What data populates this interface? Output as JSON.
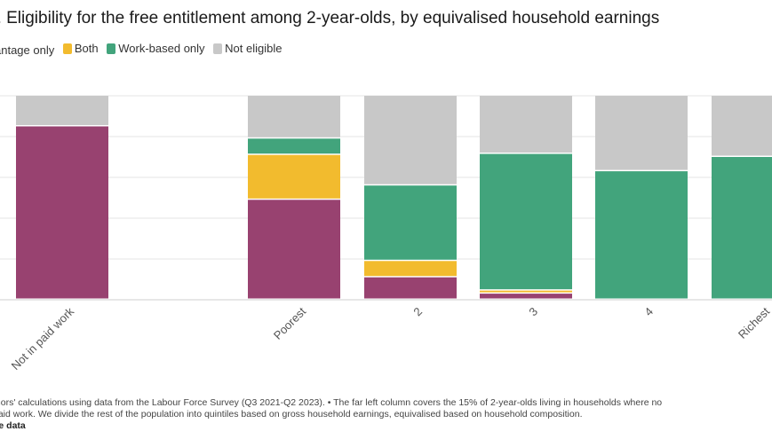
{
  "title": "1. Eligibility for the free entitlement among 2-year-olds, by equivalised household earnings",
  "legend": [
    {
      "label": "antage only",
      "color": "#984270"
    },
    {
      "label": "Both",
      "color": "#f2bb2e"
    },
    {
      "label": "Work-based only",
      "color": "#42a47c"
    },
    {
      "label": "Not eligible",
      "color": "#c8c8c8"
    }
  ],
  "notes": {
    "line1": "thors' calculations using data from the Labour Force Survey (Q3 2021-Q2 2023). • The far left column covers the 15% of 2-year-olds living in households where no",
    "line2": "paid work. We divide the rest of the population into quintiles based on gross household earnings, equivalised based on household composition.",
    "line3": "he data"
  },
  "chart_data": {
    "type": "bar",
    "stacked": true,
    "ylim": [
      0,
      100
    ],
    "grid": true,
    "legend_position": "top-left",
    "categories": [
      "Not in paid work",
      "Poorest",
      "2",
      "3",
      "4",
      "Richest"
    ],
    "series": [
      {
        "name": "antage only",
        "color": "#984270",
        "values": [
          85,
          49,
          11,
          3,
          0,
          0
        ]
      },
      {
        "name": "Both",
        "color": "#f2bb2e",
        "values": [
          0,
          22,
          8,
          1.5,
          0,
          0
        ]
      },
      {
        "name": "Work-based only",
        "color": "#42a47c",
        "values": [
          0,
          8,
          37,
          67,
          63,
          70
        ]
      },
      {
        "name": "Not eligible",
        "color": "#c8c8c8",
        "values": [
          15,
          21,
          44,
          28.5,
          37,
          30
        ]
      }
    ]
  }
}
